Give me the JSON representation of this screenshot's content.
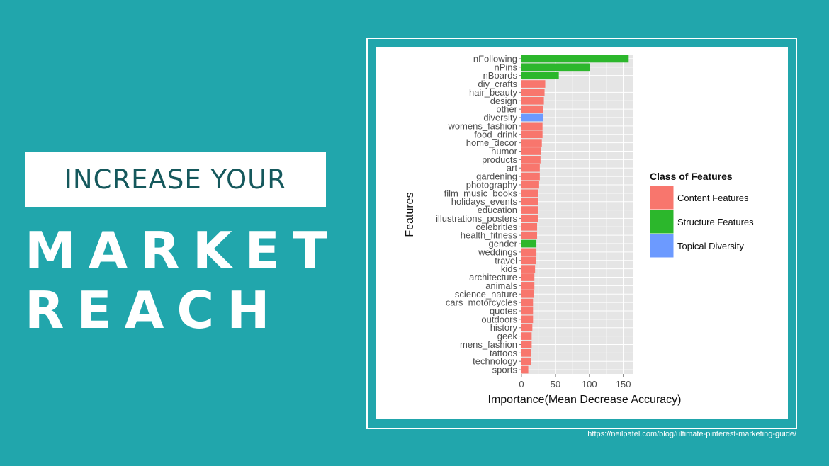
{
  "headline": {
    "line1": "INCREASE YOUR",
    "line2": "MARKET",
    "line3": "REACH"
  },
  "source_url": "https://neilpatel.com/blog/ultimate-pinterest-marketing-guide/",
  "colors": {
    "background": "#21a6ac",
    "headline_text": "#15585c",
    "content": "#f8766d",
    "structure": "#2cb72c",
    "topical": "#6c9aff"
  },
  "chart_data": {
    "type": "bar",
    "orientation": "horizontal",
    "xlabel": "Importance(Mean Decrease Accuracy)",
    "ylabel": "Features",
    "xlim": [
      0,
      165
    ],
    "xticks": [
      0,
      50,
      100,
      150
    ],
    "grid": true,
    "legend": {
      "title": "Class of Features",
      "position": "right",
      "items": [
        {
          "key": "content",
          "label": "Content Features",
          "color": "#f8766d"
        },
        {
          "key": "structure",
          "label": "Structure Features",
          "color": "#2cb72c"
        },
        {
          "key": "topical",
          "label": "Topical Diversity",
          "color": "#6c9aff"
        }
      ]
    },
    "categories": [
      "nFollowing",
      "nPins",
      "nBoards",
      "diy_crafts",
      "hair_beauty",
      "design",
      "other",
      "diversity",
      "womens_fashion",
      "food_drink",
      "home_decor",
      "humor",
      "products",
      "art",
      "gardening",
      "photography",
      "film_music_books",
      "holidays_events",
      "education",
      "illustrations_posters",
      "celebrities",
      "health_fitness",
      "gender",
      "weddings",
      "travel",
      "kids",
      "architecture",
      "animals",
      "science_nature",
      "cars_motorcycles",
      "quotes",
      "outdoors",
      "history",
      "geek",
      "mens_fashion",
      "tattoos",
      "technology",
      "sports"
    ],
    "values": [
      158,
      101,
      55,
      35,
      34,
      33,
      32,
      32,
      31,
      31,
      30,
      29,
      28,
      27,
      27,
      26,
      25,
      25,
      24,
      24,
      23,
      23,
      22,
      22,
      21,
      20,
      19,
      19,
      18,
      17,
      17,
      17,
      16,
      15,
      15,
      14,
      14,
      10
    ],
    "classes": [
      "structure",
      "structure",
      "structure",
      "content",
      "content",
      "content",
      "content",
      "topical",
      "content",
      "content",
      "content",
      "content",
      "content",
      "content",
      "content",
      "content",
      "content",
      "content",
      "content",
      "content",
      "content",
      "content",
      "structure",
      "content",
      "content",
      "content",
      "content",
      "content",
      "content",
      "content",
      "content",
      "content",
      "content",
      "content",
      "content",
      "content",
      "content",
      "content"
    ]
  }
}
